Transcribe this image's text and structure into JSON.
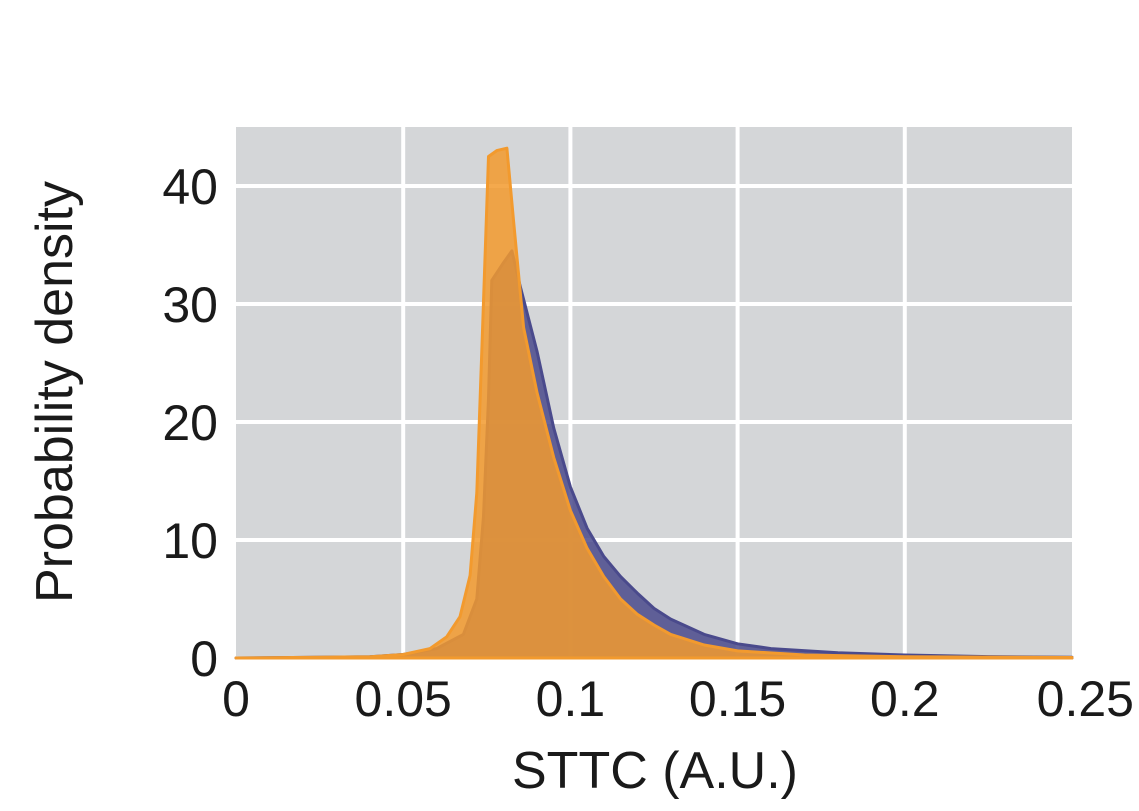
{
  "chart_data": {
    "type": "area",
    "title": "",
    "xlabel": "STTC (A.U.)",
    "ylabel": "Probability density",
    "xlim": [
      0,
      0.25
    ],
    "ylim": [
      0,
      45
    ],
    "x_ticks": [
      0,
      0.05,
      0.1,
      0.15,
      0.2,
      0.25
    ],
    "x_tick_labels": [
      "0",
      "0.05",
      "0.1",
      "0.15",
      "0.2",
      "0.25"
    ],
    "y_ticks": [
      0,
      10,
      20,
      30,
      40
    ],
    "y_tick_labels": [
      "0",
      "10",
      "20",
      "30",
      "40"
    ],
    "grid": true,
    "background": "#d4d6d8",
    "grid_color": "#ffffff",
    "series": [
      {
        "color": "#4a4a8c",
        "fill_opacity": 0.85,
        "points": [
          [
            0,
            0
          ],
          [
            0.04,
            0.1
          ],
          [
            0.05,
            0.3
          ],
          [
            0.06,
            0.8
          ],
          [
            0.068,
            2.0
          ],
          [
            0.072,
            5
          ],
          [
            0.074,
            12
          ],
          [
            0.0755,
            22
          ],
          [
            0.0765,
            32
          ],
          [
            0.08,
            33.5
          ],
          [
            0.0825,
            34.5
          ],
          [
            0.085,
            31.5
          ],
          [
            0.09,
            26
          ],
          [
            0.095,
            19.5
          ],
          [
            0.1,
            14.5
          ],
          [
            0.105,
            11
          ],
          [
            0.11,
            8.6
          ],
          [
            0.115,
            6.9
          ],
          [
            0.12,
            5.5
          ],
          [
            0.125,
            4.2
          ],
          [
            0.13,
            3.3
          ],
          [
            0.14,
            2.0
          ],
          [
            0.15,
            1.2
          ],
          [
            0.16,
            0.8
          ],
          [
            0.18,
            0.45
          ],
          [
            0.2,
            0.25
          ],
          [
            0.225,
            0.12
          ],
          [
            0.25,
            0.06
          ]
        ]
      },
      {
        "color": "#f29a2e",
        "fill_opacity": 0.85,
        "points": [
          [
            0,
            0
          ],
          [
            0.04,
            0.1
          ],
          [
            0.05,
            0.3
          ],
          [
            0.058,
            0.8
          ],
          [
            0.063,
            1.8
          ],
          [
            0.067,
            3.5
          ],
          [
            0.07,
            7
          ],
          [
            0.072,
            14
          ],
          [
            0.0735,
            26
          ],
          [
            0.0755,
            42.5
          ],
          [
            0.078,
            43
          ],
          [
            0.081,
            43.2
          ],
          [
            0.083,
            37
          ],
          [
            0.086,
            28
          ],
          [
            0.09,
            22.5
          ],
          [
            0.095,
            17
          ],
          [
            0.1,
            12.5
          ],
          [
            0.105,
            9.3
          ],
          [
            0.11,
            6.9
          ],
          [
            0.115,
            5.0
          ],
          [
            0.12,
            3.7
          ],
          [
            0.125,
            2.8
          ],
          [
            0.13,
            2.0
          ],
          [
            0.14,
            1.1
          ],
          [
            0.15,
            0.6
          ],
          [
            0.17,
            0.25
          ],
          [
            0.2,
            0.1
          ],
          [
            0.25,
            0.04
          ]
        ]
      }
    ]
  }
}
